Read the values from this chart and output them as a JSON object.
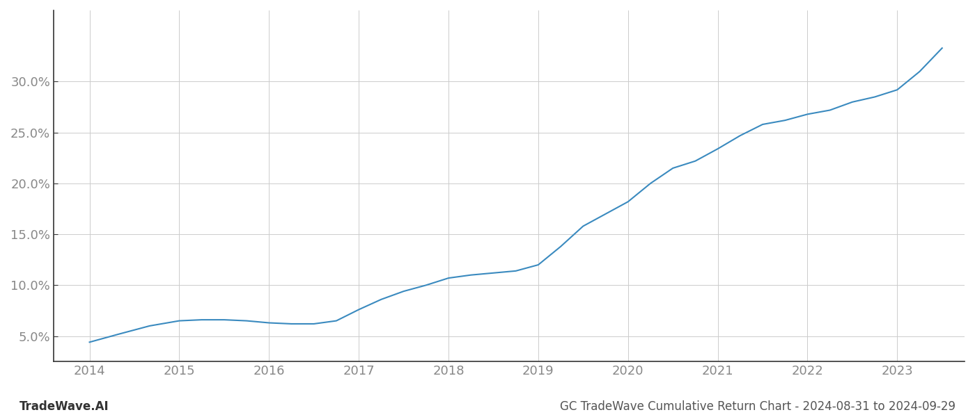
{
  "x_values": [
    2014.0,
    2014.33,
    2014.67,
    2015.0,
    2015.25,
    2015.5,
    2015.75,
    2016.0,
    2016.25,
    2016.5,
    2016.75,
    2017.0,
    2017.25,
    2017.5,
    2017.75,
    2018.0,
    2018.25,
    2018.5,
    2018.75,
    2019.0,
    2019.25,
    2019.5,
    2019.75,
    2020.0,
    2020.25,
    2020.5,
    2020.75,
    2021.0,
    2021.25,
    2021.5,
    2021.75,
    2022.0,
    2022.25,
    2022.5,
    2022.75,
    2023.0,
    2023.25,
    2023.5
  ],
  "y_values": [
    0.044,
    0.052,
    0.06,
    0.065,
    0.066,
    0.066,
    0.065,
    0.063,
    0.062,
    0.062,
    0.065,
    0.076,
    0.086,
    0.094,
    0.1,
    0.107,
    0.11,
    0.112,
    0.114,
    0.12,
    0.138,
    0.158,
    0.17,
    0.182,
    0.2,
    0.215,
    0.222,
    0.234,
    0.247,
    0.258,
    0.262,
    0.268,
    0.272,
    0.28,
    0.285,
    0.292,
    0.31,
    0.333
  ],
  "line_color": "#3a8abf",
  "line_width": 1.5,
  "background_color": "#ffffff",
  "grid_color": "#cccccc",
  "x_ticks": [
    2014,
    2015,
    2016,
    2017,
    2018,
    2019,
    2020,
    2021,
    2022,
    2023
  ],
  "y_ticks": [
    0.05,
    0.1,
    0.15,
    0.2,
    0.25,
    0.3
  ],
  "y_tick_labels": [
    "5.0%",
    "10.0%",
    "15.0%",
    "20.0%",
    "25.0%",
    "30.0%"
  ],
  "xlim": [
    2013.6,
    2023.75
  ],
  "ylim": [
    0.025,
    0.37
  ],
  "footer_left": "TradeWave.AI",
  "footer_right": "GC TradeWave Cumulative Return Chart - 2024-08-31 to 2024-09-29",
  "footer_fontsize": 12,
  "tick_fontsize": 13,
  "spine_color": "#333333",
  "label_color": "#888888"
}
